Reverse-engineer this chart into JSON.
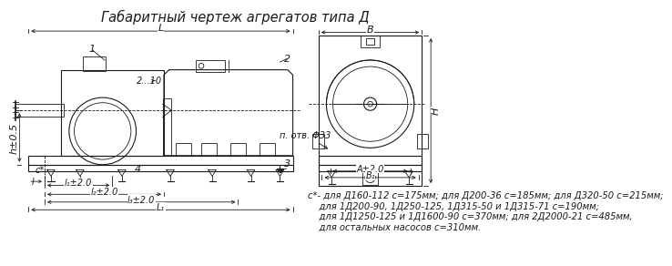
{
  "title": "Габаритный чертеж агрегатов типа Д",
  "title_fontsize": 10.5,
  "bg_color": "#ffffff",
  "line_color": "#1a1a1a",
  "note_lines": [
    "с*- для Д160-112 с=175мм; для Д200-36 с=185мм; для Д320-50 с=215мм;",
    "    для 1Д200-90, 1Д250-125, 1Д315-50 и 1Д315-71 с=190мм;",
    "    для 1Д1250-125 и 1Д1600-90 с=370мм; для 2Д2000-21 с=485мм,",
    "    для остальных насосов с=310мм."
  ],
  "note_fontsize": 7.2,
  "label_fontsize": 8.0,
  "small_fontsize": 7.0
}
